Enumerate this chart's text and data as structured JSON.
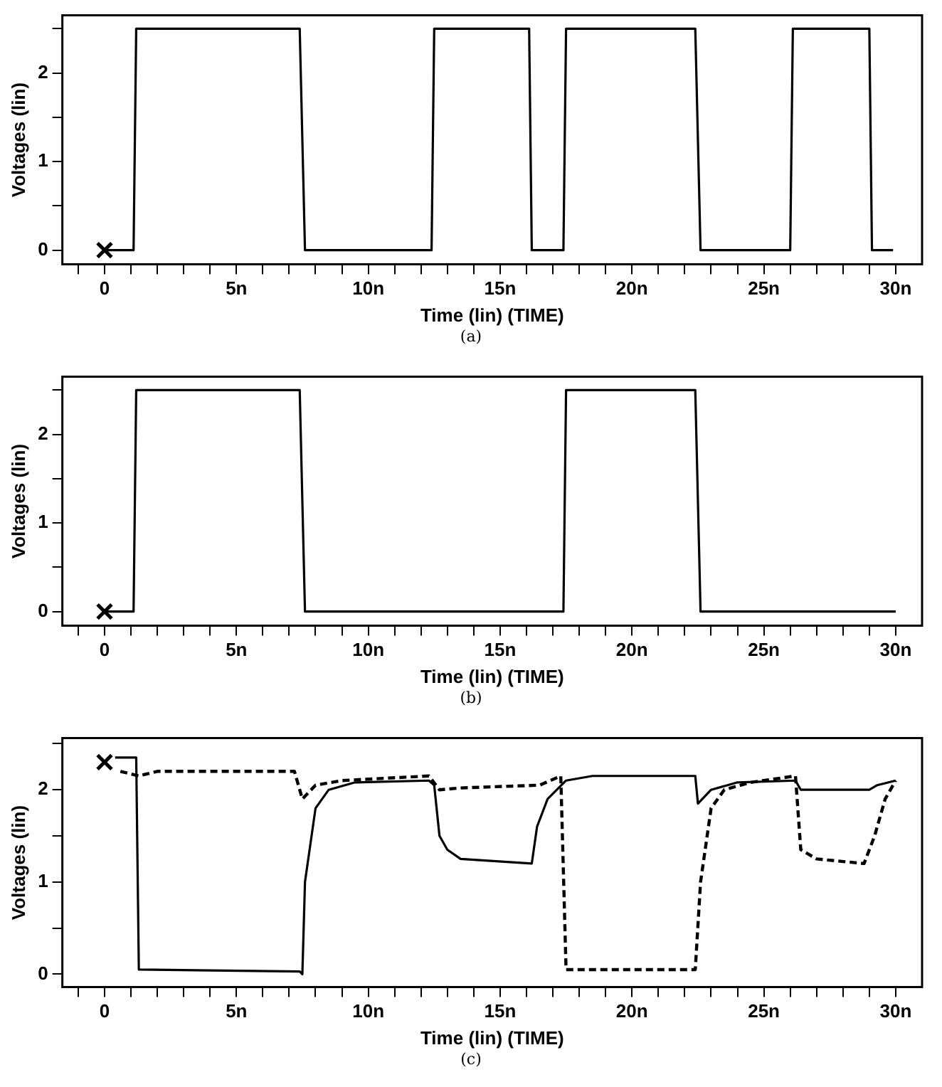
{
  "chart_data": [
    {
      "type": "line",
      "xlabel": "Time (lin) (TIME)",
      "ylabel": "Voltages (lin)",
      "xlim": [
        -1.6,
        31
      ],
      "ylim": [
        -0.16,
        2.65
      ],
      "xticks": [
        {
          "value": -1,
          "label": null
        },
        {
          "value": 0,
          "label": "0"
        },
        {
          "value": 1,
          "label": null
        },
        {
          "value": 2,
          "label": null
        },
        {
          "value": 3,
          "label": null
        },
        {
          "value": 4,
          "label": null
        },
        {
          "value": 5,
          "label": "5n"
        },
        {
          "value": 6,
          "label": null
        },
        {
          "value": 7,
          "label": null
        },
        {
          "value": 8,
          "label": null
        },
        {
          "value": 9,
          "label": null
        },
        {
          "value": 10,
          "label": "10n"
        },
        {
          "value": 11,
          "label": null
        },
        {
          "value": 12,
          "label": null
        },
        {
          "value": 13,
          "label": null
        },
        {
          "value": 14,
          "label": null
        },
        {
          "value": 15,
          "label": "15n"
        },
        {
          "value": 16,
          "label": null
        },
        {
          "value": 17,
          "label": null
        },
        {
          "value": 18,
          "label": null
        },
        {
          "value": 19,
          "label": null
        },
        {
          "value": 20,
          "label": "20n"
        },
        {
          "value": 21,
          "label": null
        },
        {
          "value": 22,
          "label": null
        },
        {
          "value": 23,
          "label": null
        },
        {
          "value": 24,
          "label": null
        },
        {
          "value": 25,
          "label": "25n"
        },
        {
          "value": 26,
          "label": null
        },
        {
          "value": 27,
          "label": null
        },
        {
          "value": 28,
          "label": null
        },
        {
          "value": 29,
          "label": null
        },
        {
          "value": 30,
          "label": "30n"
        }
      ],
      "yticks": [
        0,
        {
          "value": 0.5,
          "label": null
        },
        1,
        {
          "value": 1.5,
          "label": null
        },
        2,
        {
          "value": 2.5,
          "label": null
        }
      ],
      "grid": false,
      "legend": false,
      "annotations": [
        "(a)"
      ],
      "series": [
        {
          "color": "#000000",
          "line_style": "solid",
          "marker": "none",
          "x": [
            0,
            1.1,
            1.2,
            7.4,
            7.6,
            12.4,
            12.5,
            16.1,
            16.2,
            17.4,
            17.5,
            22.4,
            22.6,
            26,
            26.1,
            29,
            29.1,
            29.9
          ],
          "values": [
            0,
            0,
            2.5,
            2.5,
            0,
            0,
            2.5,
            2.5,
            0,
            0,
            2.5,
            2.5,
            0,
            0,
            2.5,
            2.5,
            0,
            0
          ]
        },
        {
          "type": "scatter",
          "color": "#000000",
          "marker": "cross",
          "x": [
            0
          ],
          "values": [
            0
          ]
        }
      ]
    },
    {
      "type": "line",
      "xlabel": "Time (lin) (TIME)",
      "ylabel": "Voltages (lin)",
      "xlim": [
        -1.6,
        31
      ],
      "ylim": [
        -0.16,
        2.65
      ],
      "xticks": [
        {
          "value": -1,
          "label": null
        },
        {
          "value": 0,
          "label": "0"
        },
        {
          "value": 1,
          "label": null
        },
        {
          "value": 2,
          "label": null
        },
        {
          "value": 3,
          "label": null
        },
        {
          "value": 4,
          "label": null
        },
        {
          "value": 5,
          "label": "5n"
        },
        {
          "value": 6,
          "label": null
        },
        {
          "value": 7,
          "label": null
        },
        {
          "value": 8,
          "label": null
        },
        {
          "value": 9,
          "label": null
        },
        {
          "value": 10,
          "label": "10n"
        },
        {
          "value": 11,
          "label": null
        },
        {
          "value": 12,
          "label": null
        },
        {
          "value": 13,
          "label": null
        },
        {
          "value": 14,
          "label": null
        },
        {
          "value": 15,
          "label": "15n"
        },
        {
          "value": 16,
          "label": null
        },
        {
          "value": 17,
          "label": null
        },
        {
          "value": 18,
          "label": null
        },
        {
          "value": 19,
          "label": null
        },
        {
          "value": 20,
          "label": "20n"
        },
        {
          "value": 21,
          "label": null
        },
        {
          "value": 22,
          "label": null
        },
        {
          "value": 23,
          "label": null
        },
        {
          "value": 24,
          "label": null
        },
        {
          "value": 25,
          "label": "25n"
        },
        {
          "value": 26,
          "label": null
        },
        {
          "value": 27,
          "label": null
        },
        {
          "value": 28,
          "label": null
        },
        {
          "value": 29,
          "label": null
        },
        {
          "value": 30,
          "label": "30n"
        }
      ],
      "yticks": [
        0,
        {
          "value": 0.5,
          "label": null
        },
        1,
        {
          "value": 1.5,
          "label": null
        },
        2,
        {
          "value": 2.5,
          "label": null
        }
      ],
      "grid": false,
      "legend": false,
      "annotations": [
        "(b)"
      ],
      "series": [
        {
          "color": "#000000",
          "line_style": "solid",
          "marker": "none",
          "x": [
            0,
            1.1,
            1.2,
            7.4,
            7.6,
            17.4,
            17.5,
            22.4,
            22.6,
            30
          ],
          "values": [
            0,
            0,
            2.5,
            2.5,
            0,
            0,
            2.5,
            2.5,
            0,
            0
          ]
        },
        {
          "type": "scatter",
          "color": "#000000",
          "marker": "cross",
          "x": [
            0
          ],
          "values": [
            0
          ]
        }
      ]
    },
    {
      "type": "line",
      "xlabel": "Time (lin) (TIME)",
      "ylabel": "Voltages (lin)",
      "xlim": [
        -1.6,
        31
      ],
      "ylim": [
        -0.14,
        2.56
      ],
      "xticks": [
        {
          "value": -1,
          "label": null
        },
        {
          "value": 0,
          "label": "0"
        },
        {
          "value": 1,
          "label": null
        },
        {
          "value": 2,
          "label": null
        },
        {
          "value": 3,
          "label": null
        },
        {
          "value": 4,
          "label": null
        },
        {
          "value": 5,
          "label": "5n"
        },
        {
          "value": 6,
          "label": null
        },
        {
          "value": 7,
          "label": null
        },
        {
          "value": 8,
          "label": null
        },
        {
          "value": 9,
          "label": null
        },
        {
          "value": 10,
          "label": "10n"
        },
        {
          "value": 11,
          "label": null
        },
        {
          "value": 12,
          "label": null
        },
        {
          "value": 13,
          "label": null
        },
        {
          "value": 14,
          "label": null
        },
        {
          "value": 15,
          "label": "15n"
        },
        {
          "value": 16,
          "label": null
        },
        {
          "value": 17,
          "label": null
        },
        {
          "value": 18,
          "label": null
        },
        {
          "value": 19,
          "label": null
        },
        {
          "value": 20,
          "label": "20n"
        },
        {
          "value": 21,
          "label": null
        },
        {
          "value": 22,
          "label": null
        },
        {
          "value": 23,
          "label": null
        },
        {
          "value": 24,
          "label": null
        },
        {
          "value": 25,
          "label": "25n"
        },
        {
          "value": 26,
          "label": null
        },
        {
          "value": 27,
          "label": null
        },
        {
          "value": 28,
          "label": null
        },
        {
          "value": 29,
          "label": null
        },
        {
          "value": 30,
          "label": "30n"
        }
      ],
      "yticks": [
        0,
        {
          "value": 0.5,
          "label": null
        },
        1,
        {
          "value": 1.5,
          "label": null
        },
        2,
        {
          "value": 2.5,
          "label": null
        }
      ],
      "grid": false,
      "legend": false,
      "annotations": [
        "(c)"
      ],
      "series": [
        {
          "color": "#000000",
          "line_style": "solid",
          "marker": "none",
          "x": [
            0.4,
            1.2,
            1.3,
            7.4,
            7.5,
            7.6,
            8,
            8.5,
            9.5,
            12.3,
            12.5,
            12.7,
            13,
            13.5,
            16.2,
            16.4,
            16.8,
            17.5,
            18.5,
            22.4,
            22.5,
            23,
            24,
            26.2,
            26.4,
            29,
            29.3,
            30
          ],
          "values": [
            2.35,
            2.35,
            0.05,
            0.03,
            0,
            1,
            1.8,
            2,
            2.08,
            2.1,
            2.05,
            1.5,
            1.35,
            1.25,
            1.2,
            1.6,
            1.9,
            2.1,
            2.15,
            2.15,
            1.85,
            2,
            2.08,
            2.1,
            2,
            2,
            2.05,
            2.1
          ]
        },
        {
          "color": "#000000",
          "line_style": "dashed",
          "marker": "none",
          "x": [
            0.6,
            1.3,
            2,
            7.2,
            7.5,
            8,
            9,
            12.3,
            12.7,
            13.5,
            16.5,
            17.3,
            17.5,
            22.4,
            22.6,
            23,
            23.5,
            24.5,
            26.2,
            26.4,
            27,
            28.8,
            29.2,
            29.6,
            30
          ],
          "values": [
            2.2,
            2.15,
            2.2,
            2.2,
            1.9,
            2.05,
            2.1,
            2.15,
            2,
            2.02,
            2.05,
            2.15,
            0.05,
            0.05,
            1,
            1.8,
            2,
            2.08,
            2.15,
            1.35,
            1.25,
            1.2,
            1.5,
            1.9,
            2.1
          ]
        },
        {
          "type": "scatter",
          "color": "#000000",
          "marker": "cross",
          "x": [
            0
          ],
          "values": [
            2.3
          ]
        }
      ]
    }
  ]
}
